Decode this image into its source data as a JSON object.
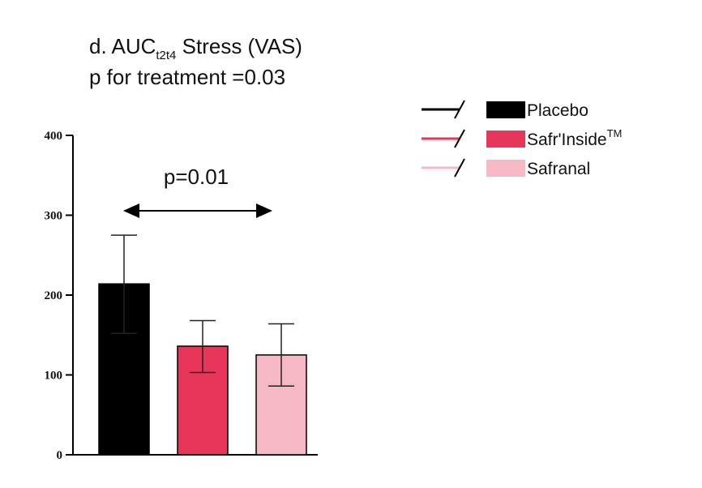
{
  "chart_data": {
    "type": "bar",
    "title_line1": {
      "prefix": "d. AUC",
      "subscript": "t2t4",
      "suffix": " Stress (VAS)"
    },
    "title_line2": "p for treatment =0.03",
    "categories": [
      "Placebo",
      "Safr'Inside™",
      "Safranal"
    ],
    "legend": [
      {
        "label": "Placebo",
        "sup": "",
        "color": "#000000"
      },
      {
        "label": "Safr'Inside",
        "sup": "TM",
        "color": "#e8365a"
      },
      {
        "label": "Safranal",
        "sup": "",
        "color": "#f6b8c4"
      }
    ],
    "values": [
      214,
      136,
      125
    ],
    "error_upper": [
      275,
      168,
      164
    ],
    "error_lower": [
      152,
      103,
      86
    ],
    "colors": [
      "#000000",
      "#e8365a",
      "#f6b8c4"
    ],
    "ylim": [
      0,
      400
    ],
    "yticks": [
      0,
      100,
      200,
      300,
      400
    ],
    "annotation": {
      "text": "p=0.01",
      "from": 0,
      "to": 1
    },
    "xlabel": "",
    "ylabel": ""
  }
}
